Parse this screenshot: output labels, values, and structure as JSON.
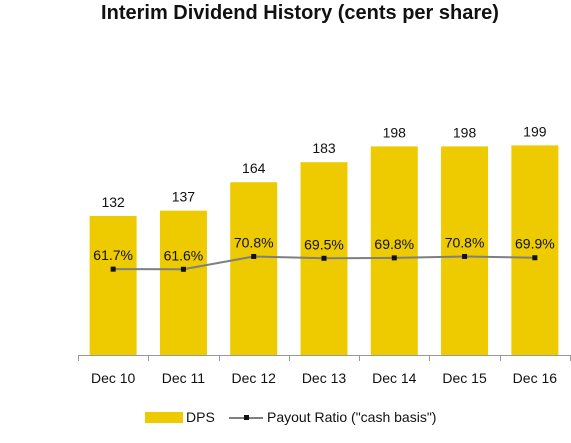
{
  "chart_data": {
    "type": "bar",
    "title": "Interim Dividend History (cents per share)",
    "categories": [
      "Dec 10",
      "Dec 11",
      "Dec 12",
      "Dec 13",
      "Dec 14",
      "Dec 15",
      "Dec 16"
    ],
    "series": [
      {
        "name": "DPS",
        "type": "bar",
        "values": [
          132,
          137,
          164,
          183,
          198,
          198,
          199
        ],
        "labels": [
          "132",
          "137",
          "164",
          "183",
          "198",
          "198",
          "199"
        ],
        "color": "#EDCB00"
      },
      {
        "name": "Payout Ratio (\"cash basis\")",
        "type": "line",
        "values": [
          61.7,
          61.6,
          70.8,
          69.5,
          69.8,
          70.8,
          69.9
        ],
        "labels": [
          "61.7%",
          "61.6%",
          "70.8%",
          "69.5%",
          "69.8%",
          "70.8%",
          "69.9%"
        ],
        "color": "#7f7f7f",
        "marker_color": "#111111"
      }
    ],
    "xlabel": "",
    "ylabel": "",
    "grid": false,
    "legend": "bottom-center",
    "ylim_bars": [
      0,
      225
    ],
    "ylim_line": [
      0,
      160
    ]
  }
}
